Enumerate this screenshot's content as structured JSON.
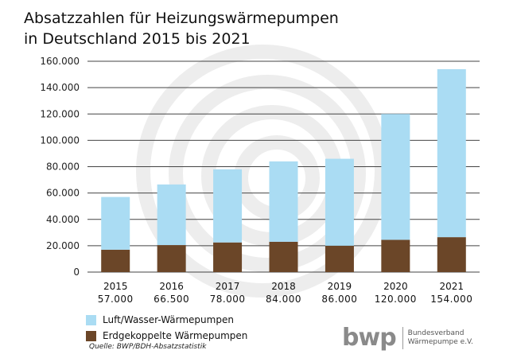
{
  "chart_data": {
    "type": "bar",
    "stacked": true,
    "title_lines": [
      "Absatzzahlen für Heizungswärmepumpen",
      "in Deutschland 2015 bis 2021"
    ],
    "categories": [
      "2015",
      "2016",
      "2017",
      "2018",
      "2019",
      "2020",
      "2021"
    ],
    "totals_text": [
      "57.000",
      "66.500",
      "78.000",
      "84.000",
      "86.000",
      "120.000",
      "154.000"
    ],
    "series": [
      {
        "name": "Erdgekoppelte Wärmepumpen",
        "color": "#6b4628",
        "values": [
          17000,
          20500,
          22500,
          23000,
          20000,
          24500,
          26500
        ]
      },
      {
        "name": "Luft/Wasser-Wärmepumpen",
        "color": "#aadcf3",
        "values": [
          40000,
          46000,
          55500,
          61000,
          66000,
          95500,
          127500
        ]
      }
    ],
    "ylim": [
      0,
      160000
    ],
    "yticks": [
      0,
      20000,
      40000,
      60000,
      80000,
      100000,
      120000,
      140000,
      160000
    ],
    "ytick_labels": [
      "0",
      "20.000",
      "40.000",
      "60.000",
      "80.000",
      "100.000",
      "120.000",
      "140.000",
      "160.000"
    ],
    "grid": true,
    "legend": [
      {
        "label": "Luft/Wasser-Wärmepumpen",
        "color": "#aadcf3"
      },
      {
        "label": "Erdgekoppelte Wärmepumpen",
        "color": "#6b4628"
      }
    ],
    "source": "Quelle: BWP/BDH-Absatzstatistik"
  },
  "logo": {
    "word": "bwp",
    "org_line1": "Bundesverband",
    "org_line2": "Wärmepumpe e.V."
  }
}
